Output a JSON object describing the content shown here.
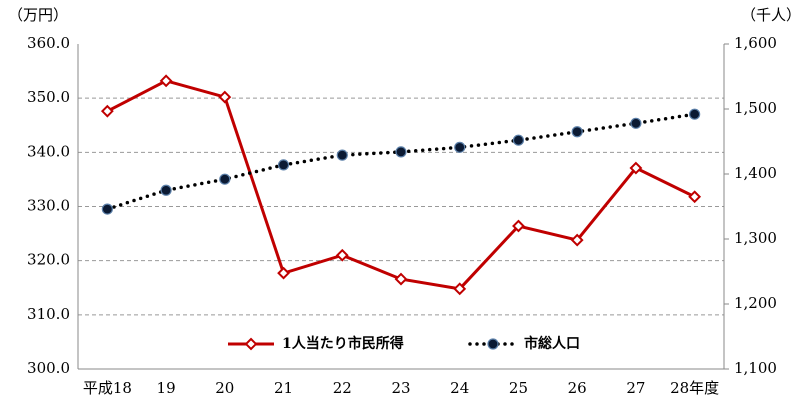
{
  "chart_data": {
    "type": "line",
    "y_unit_label": "（万円）",
    "y2_unit_label": "（千人）",
    "categories": [
      "平成18",
      "19",
      "20",
      "21",
      "22",
      "23",
      "24",
      "25",
      "26",
      "27",
      "28年度"
    ],
    "series": [
      {
        "name": "1人当たり市民所得",
        "color": "#c00000",
        "marker": "diamond",
        "line": "solid",
        "axis": "y",
        "values": [
          347.6,
          353.2,
          350.2,
          317.7,
          321.0,
          316.6,
          314.8,
          326.4,
          323.8,
          337.1,
          331.8
        ]
      },
      {
        "name": "市総人口",
        "color": "#000000",
        "marker": "circle",
        "line": "dotted",
        "axis": "y2",
        "values": [
          1346,
          1375,
          1392,
          1414,
          1429,
          1434,
          1441,
          1452,
          1465,
          1478,
          1492
        ]
      }
    ],
    "ylim": [
      300,
      360
    ],
    "yticks": [
      {
        "value": 300,
        "label": "300.0"
      },
      {
        "value": 310,
        "label": "310.0"
      },
      {
        "value": 320,
        "label": "320.0"
      },
      {
        "value": 330,
        "label": "330.0"
      },
      {
        "value": 340,
        "label": "340.0"
      },
      {
        "value": 350,
        "label": "350.0"
      },
      {
        "value": 360,
        "label": "360.0"
      }
    ],
    "y2lim": [
      1100,
      1600
    ],
    "y2ticks": [
      {
        "value": 1100,
        "label": "1,100"
      },
      {
        "value": 1200,
        "label": "1,200"
      },
      {
        "value": 1300,
        "label": "1,300"
      },
      {
        "value": 1400,
        "label": "1,400"
      },
      {
        "value": 1500,
        "label": "1,500"
      },
      {
        "value": 1600,
        "label": "1,600"
      }
    ],
    "grid": true,
    "legend": "bottom"
  }
}
